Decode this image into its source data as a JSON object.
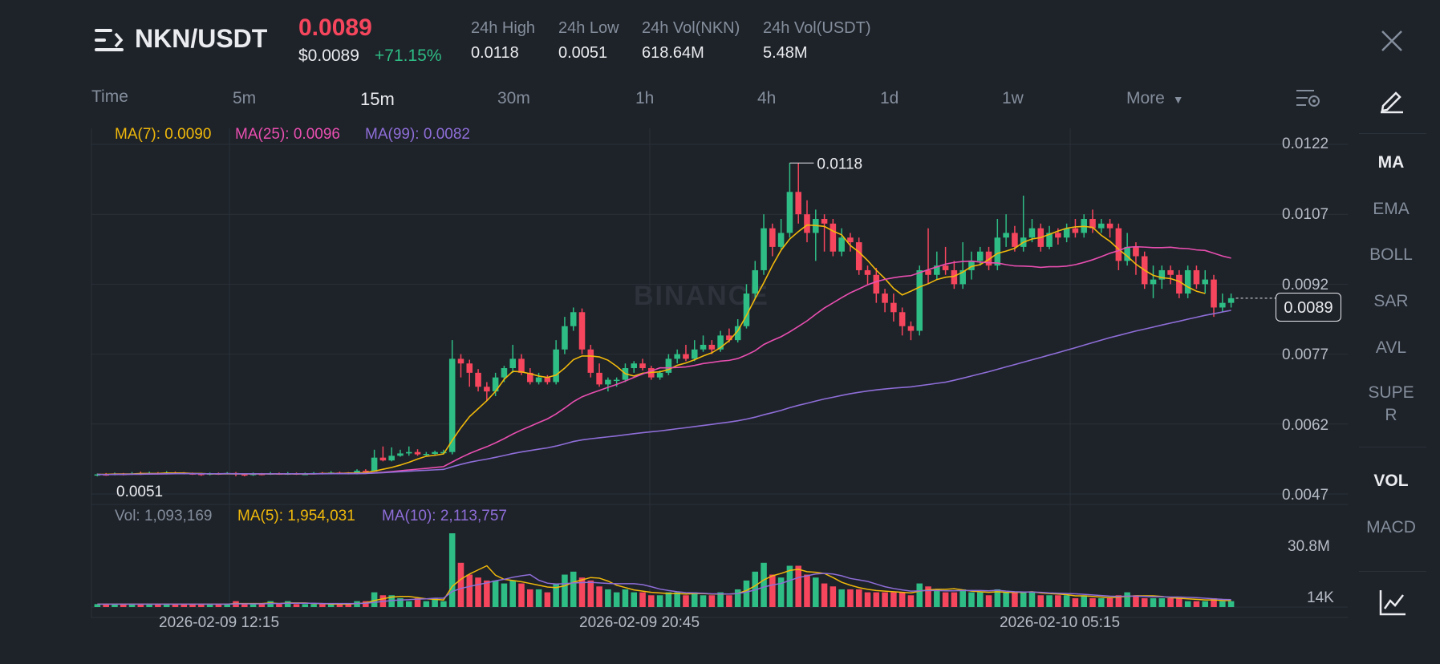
{
  "header": {
    "pair": "NKN/USDT",
    "last_price": "0.0089",
    "usd_price": "$0.0089",
    "change_pct": "+71.15%",
    "stats": [
      {
        "label": "24h High",
        "value": "0.0118"
      },
      {
        "label": "24h Low",
        "value": "0.0051"
      },
      {
        "label": "24h Vol(NKN)",
        "value": "618.64M"
      },
      {
        "label": "24h Vol(USDT)",
        "value": "5.48M"
      }
    ]
  },
  "timeframes": {
    "label": "Time",
    "items": [
      "5m",
      "15m",
      "30m",
      "1h",
      "4h",
      "1d",
      "1w"
    ],
    "active": "15m",
    "more": "More"
  },
  "indicators_panel": {
    "main": [
      "MA",
      "EMA",
      "BOLL",
      "SAR",
      "AVL",
      "SUPER",
      "VOL",
      "MACD"
    ],
    "super_line1": "SUPE",
    "super_line2": "R",
    "active_main": "MA",
    "active_sub": "VOL"
  },
  "ma_legend": {
    "ma7": "MA(7): 0.0090",
    "ma25": "MA(25): 0.0096",
    "ma99": "MA(99): 0.0082"
  },
  "vol_legend": {
    "vol": "Vol: 1,093,169",
    "ma5": "MA(5): 1,954,031",
    "ma10": "MA(10): 2,113,757"
  },
  "watermark": "BINANCE",
  "colors": {
    "up": "#2ebd85",
    "down": "#f6465d",
    "ma7": "#f0b90b",
    "ma25": "#e84fb0",
    "ma99": "#8e6ed8",
    "grid": "#2b3139"
  },
  "chart_data": {
    "type": "candlestick",
    "y_ticks": [
      "0.0122",
      "0.0107",
      "0.0092",
      "0.0077",
      "0.0062",
      "0.0047"
    ],
    "ylim": [
      0.0047,
      0.0122
    ],
    "vol_ticks": [
      "30.8M",
      "14K"
    ],
    "x_ticks": [
      "2026-02-09 12:15",
      "2026-02-09 20:45",
      "2026-02-10 05:15"
    ],
    "high_label": "0.0118",
    "low_label": "0.0051",
    "current_price_tag": "0.0089",
    "candles": [
      [
        0.0051,
        0.00512,
        0.00514,
        0.00508,
        1
      ],
      [
        0.00512,
        0.00511,
        0.00515,
        0.00509,
        1
      ],
      [
        0.00511,
        0.00513,
        0.00516,
        0.0051,
        1
      ],
      [
        0.00513,
        0.00512,
        0.00515,
        0.0051,
        1
      ],
      [
        0.00512,
        0.00514,
        0.00517,
        0.00511,
        1
      ],
      [
        0.00514,
        0.00513,
        0.00518,
        0.00511,
        1
      ],
      [
        0.00513,
        0.00515,
        0.00518,
        0.00512,
        1
      ],
      [
        0.00515,
        0.00514,
        0.00517,
        0.00512,
        1
      ],
      [
        0.00514,
        0.00516,
        0.00519,
        0.00512,
        1
      ],
      [
        0.00516,
        0.00515,
        0.00518,
        0.00513,
        1
      ],
      [
        0.00515,
        0.00514,
        0.00517,
        0.00512,
        1
      ],
      [
        0.00514,
        0.00513,
        0.00516,
        0.00511,
        1
      ],
      [
        0.00513,
        0.00512,
        0.00515,
        0.00509,
        1
      ],
      [
        0.00512,
        0.00514,
        0.00516,
        0.0051,
        1
      ],
      [
        0.00514,
        0.00513,
        0.00516,
        0.00511,
        1
      ],
      [
        0.00513,
        0.00515,
        0.00517,
        0.00512,
        1
      ],
      [
        0.00515,
        0.00512,
        0.00517,
        0.00508,
        2
      ],
      [
        0.00512,
        0.00511,
        0.00514,
        0.00508,
        1
      ],
      [
        0.00511,
        0.00513,
        0.00516,
        0.00509,
        1
      ],
      [
        0.00513,
        0.00512,
        0.00515,
        0.0051,
        1
      ],
      [
        0.00512,
        0.00514,
        0.00517,
        0.00511,
        2
      ],
      [
        0.00514,
        0.00513,
        0.00516,
        0.00511,
        1
      ],
      [
        0.00513,
        0.00514,
        0.00517,
        0.00511,
        2
      ],
      [
        0.00514,
        0.00513,
        0.00516,
        0.00511,
        1
      ],
      [
        0.00513,
        0.00513,
        0.00516,
        0.00511,
        1
      ],
      [
        0.00513,
        0.00515,
        0.00517,
        0.00512,
        1
      ],
      [
        0.00515,
        0.00514,
        0.00517,
        0.00512,
        1
      ],
      [
        0.00514,
        0.00516,
        0.00519,
        0.00512,
        1
      ],
      [
        0.00516,
        0.00515,
        0.00518,
        0.00513,
        1
      ],
      [
        0.00515,
        0.00514,
        0.00517,
        0.00512,
        1
      ],
      [
        0.00514,
        0.0052,
        0.00523,
        0.00512,
        2
      ],
      [
        0.0052,
        0.00518,
        0.00523,
        0.00515,
        2
      ],
      [
        0.00518,
        0.00548,
        0.00565,
        0.00518,
        5
      ],
      [
        0.00548,
        0.00542,
        0.00572,
        0.0054,
        4
      ],
      [
        0.00542,
        0.00552,
        0.0057,
        0.0054,
        4
      ],
      [
        0.00552,
        0.00557,
        0.00565,
        0.0055,
        3
      ],
      [
        0.00557,
        0.0056,
        0.00572,
        0.00552,
        2
      ],
      [
        0.0056,
        0.00555,
        0.00566,
        0.00552,
        3
      ],
      [
        0.00555,
        0.00556,
        0.0056,
        0.00552,
        2
      ],
      [
        0.00556,
        0.0056,
        0.00563,
        0.00553,
        3
      ],
      [
        0.0056,
        0.0056,
        0.00565,
        0.00555,
        2
      ],
      [
        0.0056,
        0.0076,
        0.008,
        0.00555,
        25
      ],
      [
        0.0076,
        0.0075,
        0.0077,
        0.0072,
        15
      ],
      [
        0.0075,
        0.0073,
        0.00758,
        0.007,
        11
      ],
      [
        0.0073,
        0.007,
        0.00738,
        0.0069,
        10
      ],
      [
        0.007,
        0.0069,
        0.0071,
        0.0067,
        9
      ],
      [
        0.0069,
        0.0072,
        0.0073,
        0.0068,
        9
      ],
      [
        0.0072,
        0.0074,
        0.00745,
        0.0071,
        8
      ],
      [
        0.0074,
        0.0076,
        0.0079,
        0.0073,
        9
      ],
      [
        0.0076,
        0.0073,
        0.0077,
        0.00725,
        8
      ],
      [
        0.0073,
        0.0071,
        0.0074,
        0.00705,
        6
      ],
      [
        0.0071,
        0.0072,
        0.0073,
        0.00705,
        6
      ],
      [
        0.0072,
        0.0071,
        0.00725,
        0.00705,
        5
      ],
      [
        0.0071,
        0.0078,
        0.008,
        0.00705,
        8
      ],
      [
        0.0078,
        0.0083,
        0.0085,
        0.0077,
        11
      ],
      [
        0.0083,
        0.0086,
        0.0087,
        0.0082,
        12
      ],
      [
        0.0086,
        0.0078,
        0.00868,
        0.0077,
        10
      ],
      [
        0.0078,
        0.0073,
        0.0079,
        0.0072,
        9
      ],
      [
        0.0073,
        0.00705,
        0.0075,
        0.007,
        7
      ],
      [
        0.00705,
        0.00715,
        0.0072,
        0.0069,
        6
      ],
      [
        0.00715,
        0.00715,
        0.0072,
        0.007,
        5
      ],
      [
        0.00715,
        0.0074,
        0.0075,
        0.0071,
        6
      ],
      [
        0.0074,
        0.0075,
        0.00755,
        0.0073,
        5
      ],
      [
        0.0075,
        0.0074,
        0.0076,
        0.00735,
        5
      ],
      [
        0.0074,
        0.0072,
        0.00745,
        0.00715,
        4
      ],
      [
        0.0072,
        0.0073,
        0.00735,
        0.00715,
        4
      ],
      [
        0.0073,
        0.0076,
        0.0077,
        0.00725,
        5
      ],
      [
        0.0076,
        0.0077,
        0.0078,
        0.0075,
        5
      ],
      [
        0.0077,
        0.0076,
        0.0079,
        0.00755,
        4
      ],
      [
        0.0076,
        0.0078,
        0.008,
        0.00755,
        5
      ],
      [
        0.0078,
        0.0079,
        0.0081,
        0.00775,
        4
      ],
      [
        0.0079,
        0.0078,
        0.008,
        0.0077,
        4
      ],
      [
        0.0078,
        0.0081,
        0.0082,
        0.00775,
        5
      ],
      [
        0.0081,
        0.008,
        0.00825,
        0.00795,
        4
      ],
      [
        0.008,
        0.0083,
        0.00845,
        0.00795,
        6
      ],
      [
        0.0083,
        0.009,
        0.0092,
        0.00825,
        9
      ],
      [
        0.009,
        0.0095,
        0.0097,
        0.0089,
        12
      ],
      [
        0.0095,
        0.0104,
        0.0107,
        0.0094,
        15
      ],
      [
        0.0104,
        0.01,
        0.0105,
        0.0098,
        11
      ],
      [
        0.01,
        0.0103,
        0.0106,
        0.00995,
        10
      ],
      [
        0.0103,
        0.01118,
        0.0118,
        0.0102,
        14
      ],
      [
        0.01118,
        0.0107,
        0.0118,
        0.0105,
        14
      ],
      [
        0.0107,
        0.0103,
        0.011,
        0.0101,
        11
      ],
      [
        0.0103,
        0.0106,
        0.0108,
        0.0097,
        10
      ],
      [
        0.0106,
        0.0105,
        0.0107,
        0.0099,
        8
      ],
      [
        0.0105,
        0.0099,
        0.0106,
        0.0098,
        7
      ],
      [
        0.0099,
        0.0102,
        0.0104,
        0.0098,
        6
      ],
      [
        0.0102,
        0.0101,
        0.0103,
        0.0099,
        6
      ],
      [
        0.0101,
        0.0095,
        0.0102,
        0.0094,
        6
      ],
      [
        0.0095,
        0.0094,
        0.0096,
        0.0092,
        5
      ],
      [
        0.0094,
        0.009,
        0.00955,
        0.0088,
        5
      ],
      [
        0.009,
        0.0088,
        0.0091,
        0.0086,
        5
      ],
      [
        0.0088,
        0.0086,
        0.009,
        0.0084,
        5
      ],
      [
        0.0086,
        0.0083,
        0.0087,
        0.0081,
        5
      ],
      [
        0.0083,
        0.0082,
        0.0084,
        0.008,
        4
      ],
      [
        0.0082,
        0.0095,
        0.0096,
        0.0081,
        8
      ],
      [
        0.0095,
        0.0094,
        0.0104,
        0.0092,
        7
      ],
      [
        0.0094,
        0.0096,
        0.0099,
        0.0093,
        6
      ],
      [
        0.0096,
        0.0095,
        0.01,
        0.0094,
        5
      ],
      [
        0.0095,
        0.0092,
        0.0097,
        0.0091,
        5
      ],
      [
        0.0092,
        0.0095,
        0.0101,
        0.0091,
        6
      ],
      [
        0.0095,
        0.0097,
        0.0099,
        0.0093,
        5
      ],
      [
        0.0097,
        0.0099,
        0.01,
        0.0096,
        5
      ],
      [
        0.0099,
        0.0096,
        0.01,
        0.0095,
        4
      ],
      [
        0.0096,
        0.0102,
        0.0106,
        0.0095,
        6
      ],
      [
        0.0102,
        0.0103,
        0.0107,
        0.01,
        5
      ],
      [
        0.0103,
        0.01,
        0.01045,
        0.0099,
        5
      ],
      [
        0.01,
        0.0102,
        0.0111,
        0.0099,
        5
      ],
      [
        0.0102,
        0.0104,
        0.0106,
        0.0101,
        5
      ],
      [
        0.0104,
        0.01,
        0.0105,
        0.0099,
        4
      ],
      [
        0.01,
        0.0103,
        0.01045,
        0.00995,
        4
      ],
      [
        0.0103,
        0.0102,
        0.0104,
        0.01005,
        4
      ],
      [
        0.0102,
        0.0104,
        0.0105,
        0.0101,
        4
      ],
      [
        0.0104,
        0.0103,
        0.0106,
        0.0102,
        3
      ],
      [
        0.0103,
        0.0106,
        0.0107,
        0.0102,
        4
      ],
      [
        0.0106,
        0.0104,
        0.0108,
        0.0103,
        3
      ],
      [
        0.0104,
        0.0105,
        0.0106,
        0.0103,
        3
      ],
      [
        0.0105,
        0.0104,
        0.0106,
        0.0102,
        3
      ],
      [
        0.0104,
        0.0097,
        0.0105,
        0.0095,
        4
      ],
      [
        0.0097,
        0.01,
        0.0103,
        0.0096,
        5
      ],
      [
        0.01,
        0.0098,
        0.0101,
        0.0094,
        4
      ],
      [
        0.0098,
        0.0092,
        0.0099,
        0.0091,
        3
      ],
      [
        0.0092,
        0.0093,
        0.0096,
        0.0089,
        3
      ],
      [
        0.0093,
        0.0095,
        0.0096,
        0.0091,
        3
      ],
      [
        0.0095,
        0.0094,
        0.0096,
        0.0092,
        3
      ],
      [
        0.0094,
        0.009,
        0.0095,
        0.0089,
        3
      ],
      [
        0.009,
        0.0095,
        0.0096,
        0.0089,
        2
      ],
      [
        0.0095,
        0.0092,
        0.0096,
        0.0091,
        2
      ],
      [
        0.0092,
        0.0093,
        0.0095,
        0.009,
        2
      ],
      [
        0.0093,
        0.0087,
        0.0094,
        0.0085,
        3
      ],
      [
        0.0087,
        0.0088,
        0.009,
        0.0086,
        2
      ],
      [
        0.0088,
        0.0089,
        0.009,
        0.0087,
        2
      ]
    ],
    "ma7": [
      0.00512,
      0.00512,
      0.00513,
      0.00513,
      0.00513,
      0.00514,
      0.00514,
      0.00514,
      0.00515,
      0.00515,
      0.00515,
      0.00514,
      0.00514,
      0.00513,
      0.00513,
      0.00513,
      0.00513,
      0.00513,
      0.00513,
      0.00513,
      0.00513,
      0.00513,
      0.00513,
      0.00513,
      0.00513,
      0.00513,
      0.00514,
      0.00514,
      0.00514,
      0.00515,
      0.00515,
      0.00516,
      0.00519,
      0.00523,
      0.00527,
      0.00532,
      0.00538,
      0.00545,
      0.00551,
      0.00553,
      0.00556,
      0.00585,
      0.00612,
      0.00636,
      0.00653,
      0.0067,
      0.0069,
      0.00716,
      0.00733,
      0.00732,
      0.00728,
      0.00723,
      0.0072,
      0.00725,
      0.0074,
      0.00758,
      0.00766,
      0.00766,
      0.00764,
      0.00757,
      0.00744,
      0.00728,
      0.00723,
      0.00729,
      0.00731,
      0.00732,
      0.00737,
      0.00746,
      0.00751,
      0.00758,
      0.00766,
      0.00773,
      0.00784,
      0.00799,
      0.0082,
      0.00853,
      0.00889,
      0.00923,
      0.0096,
      0.00993,
      0.01017,
      0.01033,
      0.01047,
      0.01046,
      0.01044,
      0.01034,
      0.01026,
      0.01003,
      0.00989,
      0.00971,
      0.0095,
      0.00932,
      0.00911,
      0.00897,
      0.00905,
      0.00914,
      0.00921,
      0.0093,
      0.00935,
      0.00937,
      0.00946,
      0.00958,
      0.00962,
      0.00973,
      0.00986,
      0.00991,
      0.00997,
      0.0101,
      0.01017,
      0.0102,
      0.01027,
      0.01034,
      0.0104,
      0.01043,
      0.01044,
      0.01042,
      0.01025,
      0.01012,
      0.00995,
      0.0098,
      0.00963,
      0.0095,
      0.00939,
      0.00934,
      0.00932,
      0.00926,
      0.00914,
      0.00905,
      0.009
    ]
  }
}
